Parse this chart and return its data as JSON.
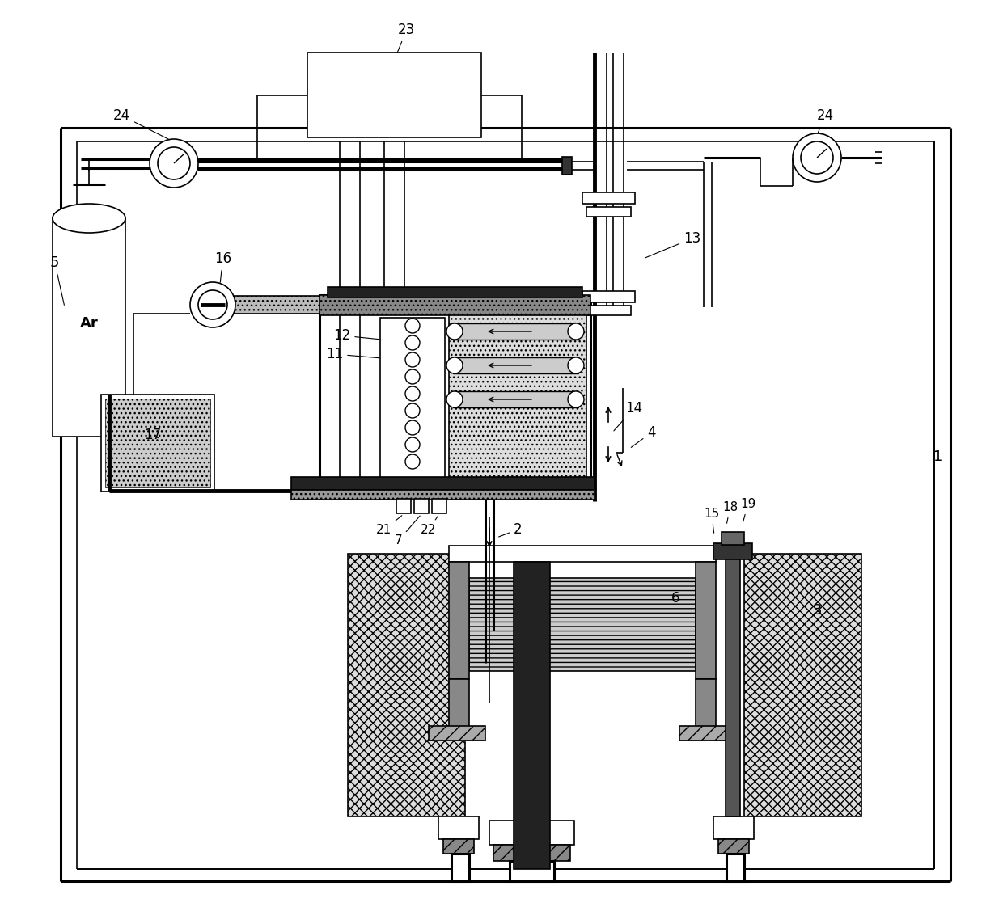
{
  "bg": "#ffffff",
  "K": "#000000",
  "figsize": [
    12.4,
    11.17
  ],
  "dpi": 100
}
